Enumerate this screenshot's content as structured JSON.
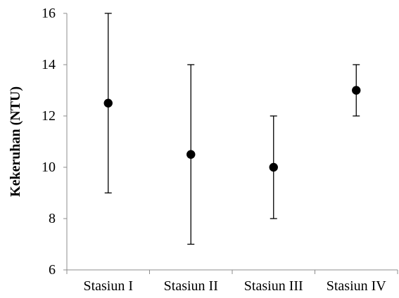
{
  "chart_data": {
    "type": "scatter",
    "categories": [
      "Stasiun I",
      "Stasiun II",
      "Stasiun III",
      "Stasiun IV"
    ],
    "values": [
      12.5,
      10.5,
      10,
      13
    ],
    "error_low": [
      9,
      7,
      8,
      12
    ],
    "error_high": [
      16,
      14,
      12,
      14
    ],
    "ylabel": "Kekeruhan (NTU)",
    "xlabel": "",
    "title": "",
    "ylim": [
      6,
      16
    ],
    "yticks": [
      6,
      8,
      10,
      12,
      14,
      16
    ],
    "grid": false,
    "legend": "none",
    "marker_color": "#000000",
    "axis_color": "#8c8c8c"
  }
}
